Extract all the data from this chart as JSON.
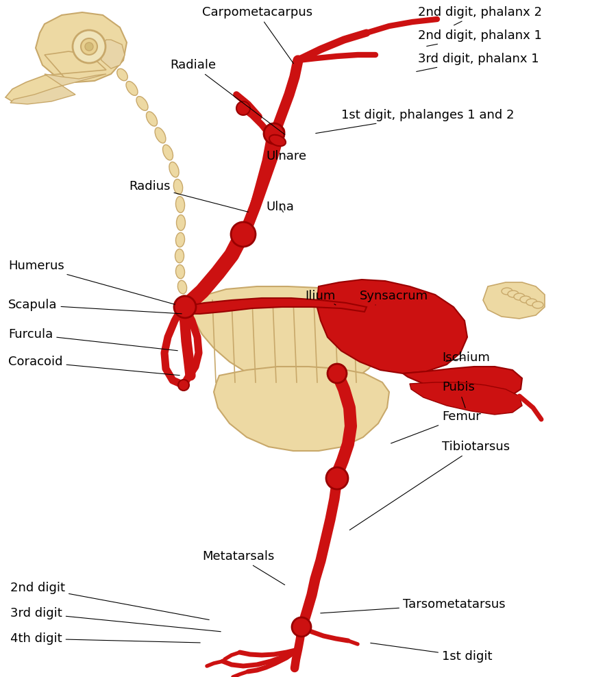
{
  "bg_color": "#ffffff",
  "tan": "#E8D5A8",
  "tan_dark": "#C8A86A",
  "tan_fill": "#EDD9A3",
  "red": "#CC1111",
  "red_dark": "#990000",
  "black": "#000000",
  "font_size": 13,
  "label_data": [
    [
      "Carpometacarpus",
      295,
      18,
      430,
      95
    ],
    [
      "2nd digit, phalanx 2",
      610,
      18,
      660,
      38
    ],
    [
      "2nd digit, phalanx 1",
      610,
      52,
      620,
      68
    ],
    [
      "3rd digit, phalanx 1",
      610,
      86,
      605,
      105
    ],
    [
      "Radiale",
      248,
      95,
      418,
      198
    ],
    [
      "1st digit, phalanges 1 and 2",
      498,
      168,
      458,
      195
    ],
    [
      "Ulnare",
      388,
      228,
      418,
      228
    ],
    [
      "Radius",
      188,
      272,
      365,
      310
    ],
    [
      "Ulna",
      388,
      302,
      415,
      312
    ],
    [
      "Humerus",
      12,
      388,
      258,
      445
    ],
    [
      "Ilium",
      445,
      432,
      490,
      445
    ],
    [
      "Synsacrum",
      525,
      432,
      548,
      445
    ],
    [
      "Scapula",
      12,
      445,
      268,
      458
    ],
    [
      "Furcula",
      12,
      488,
      262,
      512
    ],
    [
      "Coracoid",
      12,
      528,
      265,
      548
    ],
    [
      "Ischium",
      645,
      522,
      648,
      528
    ],
    [
      "Pubis",
      645,
      565,
      680,
      598
    ],
    [
      "Femur",
      645,
      608,
      568,
      648
    ],
    [
      "Tibiotarsus",
      645,
      652,
      508,
      775
    ],
    [
      "Metatarsals",
      295,
      812,
      418,
      855
    ],
    [
      "2nd digit",
      15,
      858,
      308,
      905
    ],
    [
      "3rd digit",
      15,
      895,
      325,
      922
    ],
    [
      "4th digit",
      15,
      932,
      295,
      938
    ],
    [
      "Tarsometatarsus",
      588,
      882,
      465,
      895
    ],
    [
      "1st digit",
      645,
      958,
      538,
      938
    ]
  ]
}
